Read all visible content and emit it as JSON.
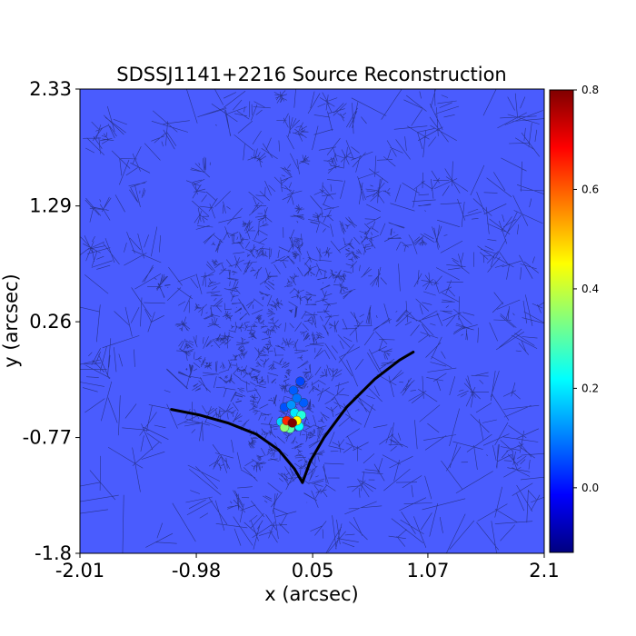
{
  "chart_data": {
    "type": "heatmap",
    "title": "SDSSJ1141+2216 Source Reconstruction",
    "xlabel": "x (arcsec)",
    "ylabel": "y (arcsec)",
    "xlim": [
      -2.01,
      2.1
    ],
    "ylim": [
      -1.8,
      2.33
    ],
    "x_ticks": [
      -2.01,
      -0.98,
      0.05,
      1.07,
      2.1
    ],
    "x_tick_labels": [
      "-2.01",
      "-0.98",
      "0.05",
      "1.07",
      "2.1"
    ],
    "y_ticks": [
      -1.8,
      -0.77,
      0.26,
      1.29,
      2.33
    ],
    "y_tick_labels": [
      "-1.8",
      "-0.77",
      "0.26",
      "1.29",
      "2.33"
    ],
    "colorbar": {
      "colormap": "jet",
      "min": -0.13,
      "max": 0.8,
      "ticks": [
        0.0,
        0.2,
        0.4,
        0.6,
        0.8
      ],
      "tick_labels": [
        "0.0",
        "0.2",
        "0.4",
        "0.6",
        "0.8"
      ]
    },
    "background_value": 0.0,
    "mesh": "voronoi",
    "bright_pixels": [
      {
        "x": -0.13,
        "y": -0.64,
        "value": 0.8
      },
      {
        "x": -0.18,
        "y": -0.62,
        "value": 0.65
      },
      {
        "x": -0.09,
        "y": -0.62,
        "value": 0.45
      },
      {
        "x": -0.05,
        "y": -0.57,
        "value": 0.25
      },
      {
        "x": -0.11,
        "y": -0.55,
        "value": 0.2
      },
      {
        "x": -0.2,
        "y": -0.68,
        "value": 0.35
      },
      {
        "x": -0.15,
        "y": -0.69,
        "value": 0.3
      },
      {
        "x": -0.07,
        "y": -0.67,
        "value": 0.22
      },
      {
        "x": -0.23,
        "y": -0.63,
        "value": 0.18
      },
      {
        "x": -0.14,
        "y": -0.48,
        "value": 0.12
      },
      {
        "x": -0.09,
        "y": -0.42,
        "value": 0.09
      },
      {
        "x": -0.12,
        "y": -0.35,
        "value": 0.07
      },
      {
        "x": -0.03,
        "y": -0.46,
        "value": 0.07
      },
      {
        "x": -0.2,
        "y": -0.5,
        "value": 0.06
      },
      {
        "x": -0.06,
        "y": -0.27,
        "value": 0.05
      }
    ],
    "caustic": {
      "left_branch": [
        [
          -1.2,
          -0.52
        ],
        [
          -0.95,
          -0.57
        ],
        [
          -0.7,
          -0.64
        ],
        [
          -0.45,
          -0.74
        ],
        [
          -0.25,
          -0.88
        ],
        [
          -0.11,
          -1.05
        ],
        [
          -0.04,
          -1.17
        ]
      ],
      "right_branch": [
        [
          -0.04,
          -1.17
        ],
        [
          0.03,
          -0.98
        ],
        [
          0.15,
          -0.77
        ],
        [
          0.35,
          -0.5
        ],
        [
          0.6,
          -0.25
        ],
        [
          0.82,
          -0.08
        ],
        [
          0.94,
          -0.01
        ]
      ]
    }
  }
}
